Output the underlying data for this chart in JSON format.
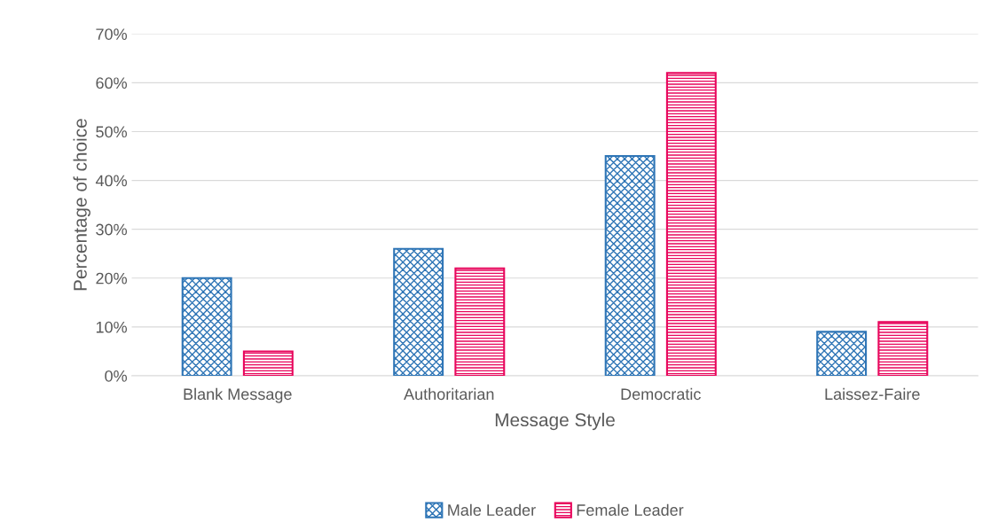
{
  "chart_data": {
    "type": "bar",
    "xlabel": "Message Style",
    "ylabel": "Percentage of choice",
    "categories": [
      "Blank Message",
      "Authoritarian",
      "Democratic",
      "Laissez-Faire"
    ],
    "series": [
      {
        "name": "Male Leader",
        "color": "#2e75b6",
        "values": [
          20,
          26,
          45,
          9
        ]
      },
      {
        "name": "Female Leader",
        "color": "#e8065c",
        "values": [
          5,
          22,
          62,
          11
        ]
      }
    ],
    "ylim": [
      0,
      70
    ],
    "yticks": [
      {
        "value": 0,
        "label": "0%"
      },
      {
        "value": 10,
        "label": "10%"
      },
      {
        "value": 20,
        "label": "20%"
      },
      {
        "value": 30,
        "label": "30%"
      },
      {
        "value": 40,
        "label": "40%"
      },
      {
        "value": 50,
        "label": "50%"
      },
      {
        "value": 60,
        "label": "60%"
      },
      {
        "value": 70,
        "label": "70%"
      }
    ],
    "grid": "y",
    "legend": "bottom"
  }
}
